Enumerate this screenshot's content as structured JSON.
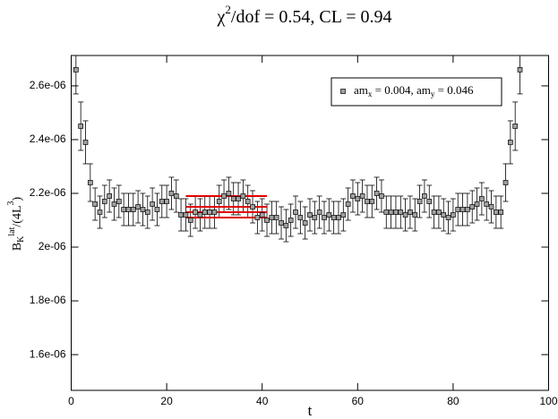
{
  "chart_data": {
    "type": "errorbar-scatter",
    "title_parts": [
      "χ",
      "2",
      "/dof = 0.54, CL = 0.94"
    ],
    "xlabel": "t",
    "ylabel_parts": [
      "B",
      "K",
      "lat",
      "/(4L",
      "3",
      ")"
    ],
    "legend_parts": [
      "am",
      "x",
      " = 0.004, am",
      "y",
      " = 0.046"
    ],
    "xlim": [
      0,
      100
    ],
    "xticks": [
      0,
      20,
      40,
      60,
      80,
      100
    ],
    "ylim": [
      1.467e-06,
      2.713e-06
    ],
    "yticks": [
      {
        "value": 1.6e-06,
        "label": "1.6e-06"
      },
      {
        "value": 1.8e-06,
        "label": "1.8e-06"
      },
      {
        "value": 2e-06,
        "label": "2e-06"
      },
      {
        "value": 2.2e-06,
        "label": "2.2e-06"
      },
      {
        "value": 2.4e-06,
        "label": "2.4e-06"
      },
      {
        "value": 2.6e-06,
        "label": "2.6e-06"
      }
    ],
    "x": [
      1,
      2,
      3,
      4,
      5,
      6,
      7,
      8,
      9,
      10,
      11,
      12,
      13,
      14,
      15,
      16,
      17,
      18,
      19,
      20,
      21,
      22,
      23,
      24,
      25,
      26,
      27,
      28,
      29,
      30,
      31,
      32,
      33,
      34,
      35,
      36,
      37,
      38,
      39,
      40,
      41,
      42,
      43,
      44,
      45,
      46,
      47,
      48,
      49,
      50,
      51,
      52,
      53,
      54,
      55,
      56,
      57,
      58,
      59,
      60,
      61,
      62,
      63,
      64,
      65,
      66,
      67,
      68,
      69,
      70,
      71,
      72,
      73,
      74,
      75,
      76,
      77,
      78,
      79,
      80,
      81,
      82,
      83,
      84,
      85,
      86,
      87,
      88,
      89,
      90,
      91,
      92,
      93,
      94
    ],
    "values": [
      2.66e-06,
      2.45e-06,
      2.39e-06,
      2.24e-06,
      2.16e-06,
      2.13e-06,
      2.17e-06,
      2.19e-06,
      2.16e-06,
      2.17e-06,
      2.14e-06,
      2.14e-06,
      2.14e-06,
      2.15e-06,
      2.14e-06,
      2.13e-06,
      2.16e-06,
      2.14e-06,
      2.17e-06,
      2.17e-06,
      2.2e-06,
      2.19e-06,
      2.12e-06,
      2.12e-06,
      2.1e-06,
      2.13e-06,
      2.12e-06,
      2.13e-06,
      2.13e-06,
      2.13e-06,
      2.17e-06,
      2.19e-06,
      2.2e-06,
      2.18e-06,
      2.18e-06,
      2.19e-06,
      2.17e-06,
      2.15e-06,
      2.11e-06,
      2.12e-06,
      2.1e-06,
      2.11e-06,
      2.11e-06,
      2.09e-06,
      2.08e-06,
      2.1e-06,
      2.13e-06,
      2.11e-06,
      2.09e-06,
      2.12e-06,
      2.11e-06,
      2.13e-06,
      2.11e-06,
      2.12e-06,
      2.11e-06,
      2.11e-06,
      2.12e-06,
      2.16e-06,
      2.19e-06,
      2.18e-06,
      2.19e-06,
      2.17e-06,
      2.17e-06,
      2.2e-06,
      2.19e-06,
      2.13e-06,
      2.13e-06,
      2.13e-06,
      2.13e-06,
      2.12e-06,
      2.13e-06,
      2.12e-06,
      2.17e-06,
      2.19e-06,
      2.17e-06,
      2.13e-06,
      2.13e-06,
      2.12e-06,
      2.11e-06,
      2.12e-06,
      2.14e-06,
      2.14e-06,
      2.14e-06,
      2.15e-06,
      2.16e-06,
      2.18e-06,
      2.16e-06,
      2.15e-06,
      2.13e-06,
      2.13e-06,
      2.24e-06,
      2.39e-06,
      2.45e-06,
      2.66e-06
    ],
    "errors": [
      9e-08,
      9e-08,
      8e-08,
      7e-08,
      6e-08,
      6e-08,
      6e-08,
      6e-08,
      6e-08,
      6e-08,
      6e-08,
      6e-08,
      6e-08,
      6e-08,
      6e-08,
      6e-08,
      6e-08,
      6e-08,
      6e-08,
      6e-08,
      6e-08,
      6e-08,
      6e-08,
      6e-08,
      6e-08,
      6e-08,
      6e-08,
      6e-08,
      6e-08,
      6e-08,
      6e-08,
      6e-08,
      6e-08,
      6e-08,
      6e-08,
      6e-08,
      6e-08,
      6e-08,
      6e-08,
      6e-08,
      6e-08,
      6e-08,
      6e-08,
      6e-08,
      6e-08,
      6e-08,
      6e-08,
      6e-08,
      6e-08,
      6e-08,
      6e-08,
      6e-08,
      6e-08,
      6e-08,
      6e-08,
      6e-08,
      6e-08,
      6e-08,
      6e-08,
      6e-08,
      6e-08,
      6e-08,
      6e-08,
      6e-08,
      6e-08,
      6e-08,
      6e-08,
      6e-08,
      6e-08,
      6e-08,
      6e-08,
      6e-08,
      6e-08,
      6e-08,
      6e-08,
      6e-08,
      6e-08,
      6e-08,
      6e-08,
      6e-08,
      6e-08,
      6e-08,
      6e-08,
      6e-08,
      6e-08,
      6e-08,
      6e-08,
      6e-08,
      6e-08,
      6e-08,
      7e-08,
      8e-08,
      9e-08,
      9e-08
    ],
    "marker_color": "#a0a0a0",
    "fit_lines": {
      "color": "#e00000",
      "xrange": [
        24,
        41
      ],
      "values": [
        2.19e-06,
        2.15e-06,
        2.13e-06,
        2.11e-06
      ]
    }
  }
}
